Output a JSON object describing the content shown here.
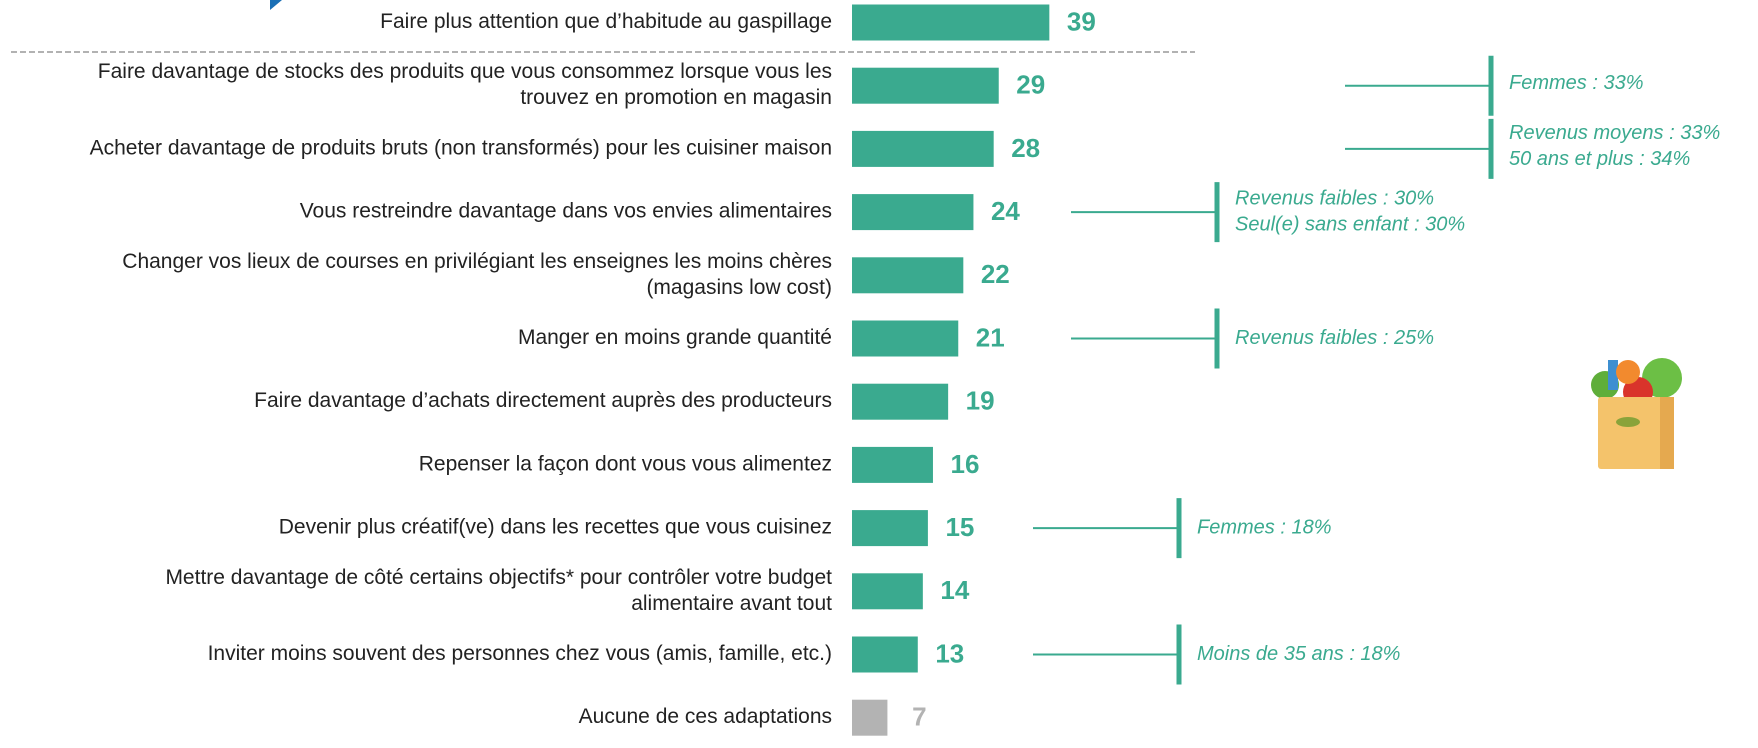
{
  "chart_data": {
    "type": "bar",
    "categories": [
      [
        "Faire plus attention que d’habitude au gaspillage"
      ],
      [
        "Faire davantage de stocks des produits que vous consommez lorsque vous les",
        "trouvez en promotion en magasin"
      ],
      [
        "Acheter davantage de produits bruts (non transformés) pour les cuisiner maison"
      ],
      [
        "Vous restreindre davantage dans vos envies alimentaires"
      ],
      [
        "Changer vos lieux de courses en privilégiant les enseignes les moins chères",
        "(magasins low cost)"
      ],
      [
        "Manger en moins grande quantité"
      ],
      [
        "Faire davantage d’achats directement auprès des producteurs"
      ],
      [
        "Repenser la façon dont vous vous alimentez"
      ],
      [
        "Devenir plus créatif(ve) dans les recettes que vous cuisinez"
      ],
      [
        "Mettre davantage de côté certains objectifs* pour contrôler votre budget",
        "alimentaire avant tout"
      ],
      [
        "Inviter moins souvent des personnes chez vous (amis, famille, etc.)"
      ],
      [
        "Aucune de ces adaptations"
      ]
    ],
    "values": [
      39,
      29,
      28,
      24,
      22,
      21,
      19,
      16,
      15,
      14,
      13,
      7
    ],
    "colors": [
      "#3aaa8f",
      "#3aaa8f",
      "#3aaa8f",
      "#3aaa8f",
      "#3aaa8f",
      "#3aaa8f",
      "#3aaa8f",
      "#3aaa8f",
      "#3aaa8f",
      "#3aaa8f",
      "#3aaa8f",
      "#b3b3b3"
    ],
    "annotations": [
      null,
      [
        "Femmes : 33%"
      ],
      [
        "Revenus moyens : 33%",
        "50 ans et plus : 34%"
      ],
      [
        "Revenus faibles : 30%",
        "Seul(e) sans enfant : 30%"
      ],
      null,
      [
        "Revenus faibles : 25%"
      ],
      null,
      null,
      [
        "Femmes : 18%"
      ],
      null,
      [
        "Moins de 35 ans : 18%"
      ],
      null
    ]
  }
}
